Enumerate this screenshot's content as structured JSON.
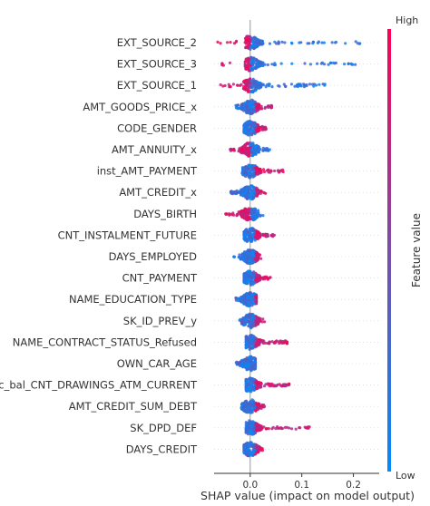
{
  "chart_data": {
    "type": "scatter",
    "subtype": "shap-beeswarm",
    "xlabel": "SHAP value (impact on model output)",
    "xlim": [
      -0.07,
      0.25
    ],
    "x_ticks": [
      {
        "value": 0.0,
        "label": "0.0"
      },
      {
        "value": 0.1,
        "label": "0.1"
      },
      {
        "value": 0.2,
        "label": "0.2"
      }
    ],
    "colorbar": {
      "label": "Feature value",
      "high_label": "High",
      "low_label": "Low",
      "high_color": "#ff0052",
      "low_color": "#008bfb"
    },
    "features": [
      {
        "name": "EXT_SOURCE_2",
        "min": -0.065,
        "max": 0.215
      },
      {
        "name": "EXT_SOURCE_3",
        "min": -0.055,
        "max": 0.205
      },
      {
        "name": "EXT_SOURCE_1",
        "min": -0.058,
        "max": 0.148
      },
      {
        "name": "AMT_GOODS_PRICE_x",
        "min": -0.03,
        "max": 0.045
      },
      {
        "name": "CODE_GENDER",
        "min": -0.012,
        "max": 0.032
      },
      {
        "name": "AMT_ANNUITY_x",
        "min": -0.042,
        "max": 0.038
      },
      {
        "name": "inst_AMT_PAYMENT",
        "min": -0.018,
        "max": 0.065
      },
      {
        "name": "AMT_CREDIT_x",
        "min": -0.038,
        "max": 0.032
      },
      {
        "name": "DAYS_BIRTH",
        "min": -0.048,
        "max": 0.028
      },
      {
        "name": "CNT_INSTALMENT_FUTURE",
        "min": -0.012,
        "max": 0.048
      },
      {
        "name": "DAYS_EMPLOYED",
        "min": -0.032,
        "max": 0.022
      },
      {
        "name": "CNT_PAYMENT",
        "min": -0.012,
        "max": 0.042
      },
      {
        "name": "NAME_EDUCATION_TYPE",
        "min": -0.028,
        "max": 0.012
      },
      {
        "name": "SK_ID_PREV_y",
        "min": -0.022,
        "max": 0.03
      },
      {
        "name": "NAME_CONTRACT_STATUS_Refused",
        "min": -0.008,
        "max": 0.072
      },
      {
        "name": "OWN_CAR_AGE",
        "min": -0.028,
        "max": 0.01
      },
      {
        "name": "cc_bal_CNT_DRAWINGS_ATM_CURRENT",
        "min": -0.008,
        "max": 0.078
      },
      {
        "name": "AMT_CREDIT_SUM_DEBT",
        "min": -0.018,
        "max": 0.028
      },
      {
        "name": "SK_DPD_DEF",
        "min": -0.008,
        "max": 0.115
      },
      {
        "name": "DAYS_CREDIT",
        "min": -0.012,
        "max": 0.025
      }
    ]
  }
}
